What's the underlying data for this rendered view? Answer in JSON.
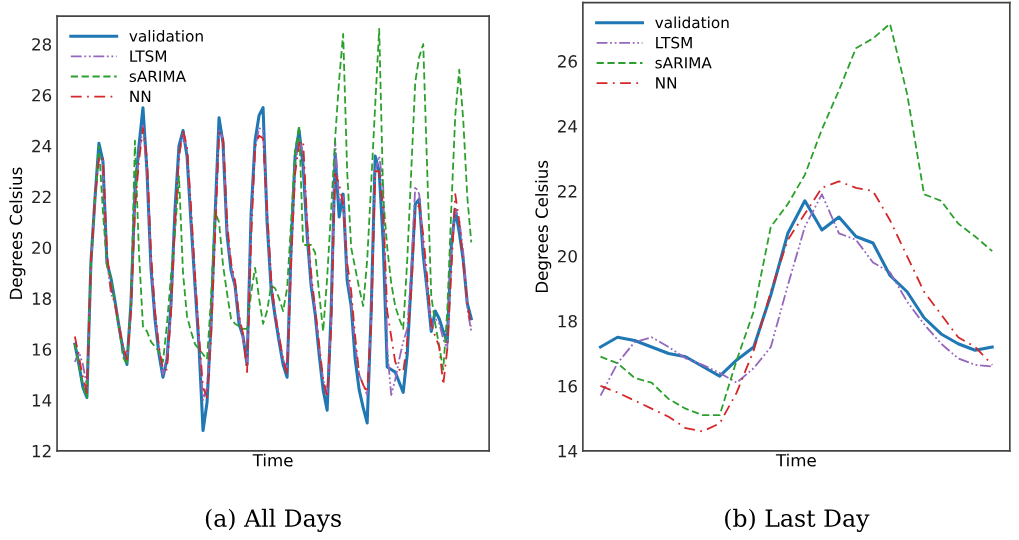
{
  "chart_data": [
    {
      "type": "line",
      "xlabel": "Time",
      "ylabel": "Degrees Celsius",
      "ylim": [
        12,
        29.1
      ],
      "yticks": [
        12,
        14,
        16,
        18,
        20,
        22,
        24,
        26,
        28
      ],
      "tick_labels": "y",
      "grid": false,
      "legend": "top left",
      "annotations": [
        "(a) All Days"
      ],
      "categories": [
        null,
        null,
        null,
        null,
        null,
        null,
        null,
        null,
        null,
        null,
        null,
        null,
        null,
        null,
        null,
        null,
        null,
        null,
        null,
        null,
        null,
        null,
        null,
        null,
        null,
        null,
        null,
        null,
        null,
        null,
        null,
        null,
        null,
        null,
        null,
        null,
        null,
        null,
        null,
        null,
        null,
        null,
        null,
        null,
        null,
        null,
        null,
        null,
        null,
        null,
        null,
        null,
        null,
        null,
        null,
        null,
        null,
        null,
        null,
        null,
        null,
        null,
        null,
        null,
        null,
        null,
        null,
        null,
        null,
        null,
        null,
        null,
        null,
        null,
        null,
        null,
        null,
        null,
        null,
        null,
        null,
        null,
        null,
        null,
        null,
        null,
        null,
        null,
        null,
        null,
        null,
        null,
        null,
        null,
        null,
        null,
        null,
        null,
        null,
        null
      ],
      "series": [
        {
          "name": "validation",
          "color": "#1f77b4",
          "line_style": "solid",
          "values": [
            16.2,
            15.4,
            14.5,
            14.1,
            19.4,
            21.9,
            24.1,
            23.4,
            19.4,
            18.8,
            17.9,
            16.9,
            16.0,
            15.4,
            17.8,
            22.2,
            24.0,
            25.5,
            23.0,
            19.2,
            17.2,
            15.8,
            14.9,
            15.6,
            17.8,
            21.5,
            24.0,
            24.6,
            23.6,
            21.0,
            18.5,
            16.1,
            12.8,
            13.9,
            17.0,
            21.2,
            25.1,
            24.1,
            20.5,
            19.1,
            18.5,
            17.0,
            16.5,
            15.4,
            21.3,
            24.2,
            25.2,
            25.5,
            21.0,
            18.4,
            17.3,
            16.3,
            15.4,
            14.9,
            20.0,
            23.6,
            24.6,
            23.2,
            20.5,
            18.5,
            17.4,
            15.8,
            14.4,
            13.6,
            17.5,
            23.7,
            21.2,
            22.1,
            18.7,
            17.7,
            15.6,
            14.4,
            13.7,
            13.1,
            17.5,
            23.6,
            23.0,
            20.2,
            15.3,
            15.2,
            15.1,
            14.7,
            14.3,
            15.8,
            18.7,
            21.7,
            21.9,
            19.7,
            18.3,
            16.7,
            17.5,
            17.2,
            16.7,
            16.3,
            20.0,
            21.5,
            20.6,
            19.5,
            17.8,
            17.2
          ]
        },
        {
          "name": "LTSM",
          "color": "#9467bd",
          "line_style": "dashdotdot",
          "values": [
            15.5,
            15.9,
            15.4,
            14.5,
            19.2,
            21.8,
            23.6,
            23.4,
            19.5,
            18.2,
            17.8,
            17.0,
            16.2,
            15.5,
            17.5,
            21.8,
            23.6,
            24.8,
            23.0,
            19.4,
            17.4,
            16.0,
            15.0,
            15.6,
            17.5,
            21.0,
            23.6,
            24.5,
            23.8,
            21.2,
            18.6,
            16.4,
            14.0,
            14.5,
            16.8,
            20.8,
            24.6,
            24.3,
            20.7,
            19.3,
            18.4,
            17.3,
            16.4,
            15.5,
            21.0,
            23.9,
            24.7,
            24.6,
            21.2,
            18.6,
            17.5,
            16.5,
            15.6,
            15.2,
            19.6,
            23.2,
            24.3,
            23.7,
            20.8,
            18.7,
            17.6,
            16.1,
            14.8,
            14.3,
            17.0,
            24.2,
            21.8,
            22.0,
            19.0,
            17.9,
            16.2,
            15.0,
            14.6,
            14.2,
            17.2,
            23.0,
            23.6,
            22.4,
            16.0,
            14.2,
            14.8,
            15.6,
            16.3,
            16.8,
            19.0,
            22.4,
            22.1,
            20.1,
            18.3,
            16.8,
            17.2,
            17.0,
            16.4,
            16.0,
            19.8,
            21.5,
            21.1,
            19.8,
            17.6,
            16.7
          ]
        },
        {
          "name": "sARIMA",
          "color": "#2ca02c",
          "line_style": "dashed",
          "values": [
            16.2,
            15.4,
            14.5,
            14.1,
            19.4,
            21.8,
            24.0,
            21.4,
            19.3,
            18.8,
            17.8,
            16.9,
            15.7,
            15.4,
            17.8,
            24.2,
            19.8,
            16.9,
            16.7,
            16.3,
            16.1,
            15.9,
            15.5,
            17.0,
            18.9,
            20.6,
            22.8,
            19.0,
            17.3,
            16.7,
            16.2,
            16.0,
            15.8,
            15.6,
            18.0,
            21.4,
            21.0,
            19.3,
            18.2,
            17.2,
            17.0,
            16.9,
            16.8,
            16.8,
            18.2,
            19.2,
            18.0,
            17.0,
            17.5,
            18.5,
            18.4,
            18.0,
            17.5,
            18.4,
            21.0,
            23.8,
            24.8,
            20.1,
            20.1,
            20.1,
            19.8,
            18.2,
            16.7,
            18.8,
            21.5,
            24.3,
            26.6,
            28.4,
            23.0,
            20.0,
            19.2,
            18.4,
            17.7,
            19.5,
            22.5,
            25.6,
            28.6,
            22.0,
            20.0,
            18.6,
            17.7,
            17.2,
            16.8,
            19.5,
            23.0,
            26.5,
            27.5,
            28.0,
            23.0,
            18.1,
            17.0,
            16.1,
            15.2,
            17.5,
            21.5,
            25.2,
            27.0,
            25.0,
            22.0,
            20.2
          ]
        },
        {
          "name": "NN",
          "color": "#d62728",
          "line_style": "dashdot",
          "values": [
            16.5,
            15.7,
            14.9,
            14.3,
            19.4,
            22.0,
            23.5,
            23.6,
            19.8,
            18.4,
            17.8,
            16.9,
            16.1,
            15.6,
            17.5,
            21.5,
            23.4,
            24.7,
            23.5,
            19.8,
            17.5,
            16.1,
            15.2,
            15.2,
            17.4,
            21.0,
            23.6,
            24.6,
            24.0,
            21.6,
            18.9,
            16.5,
            14.5,
            14.1,
            16.4,
            20.4,
            24.5,
            24.4,
            21.0,
            19.4,
            18.7,
            17.3,
            16.6,
            15.1,
            20.3,
            24.0,
            24.4,
            24.3,
            21.5,
            18.8,
            17.3,
            16.5,
            15.6,
            15.0,
            19.4,
            22.9,
            24.1,
            24.2,
            21.0,
            19.0,
            17.6,
            16.2,
            14.8,
            14.1,
            16.8,
            22.9,
            22.5,
            21.7,
            19.4,
            18.3,
            16.5,
            15.0,
            14.6,
            14.3,
            17.0,
            23.0,
            23.0,
            21.5,
            17.5,
            16.5,
            15.5,
            15.2,
            15.1,
            16.3,
            18.3,
            21.4,
            21.7,
            20.5,
            18.8,
            17.0,
            16.5,
            16.1,
            14.6,
            16.0,
            19.0,
            22.1,
            21.0,
            19.4,
            17.8,
            16.9
          ]
        }
      ]
    },
    {
      "type": "line",
      "xlabel": "Time",
      "ylabel": "Degrees Celsius",
      "ylim": [
        14,
        27.8
      ],
      "yticks": [
        14,
        16,
        18,
        20,
        22,
        24,
        26
      ],
      "tick_labels": "y",
      "grid": false,
      "legend": "top left",
      "annotations": [
        "(b) Last Day"
      ],
      "categories": [
        null,
        null,
        null,
        null,
        null,
        null,
        null,
        null,
        null,
        null,
        null,
        null,
        null,
        null,
        null,
        null,
        null,
        null,
        null,
        null,
        null,
        null,
        null,
        null
      ],
      "series": [
        {
          "name": "validation",
          "color": "#1f77b4",
          "line_style": "solid",
          "values": [
            17.2,
            17.5,
            17.4,
            17.2,
            17.0,
            16.9,
            16.6,
            16.3,
            16.8,
            17.2,
            18.8,
            20.7,
            21.7,
            20.8,
            21.2,
            20.6,
            20.4,
            19.4,
            18.9,
            18.1,
            17.6,
            17.3,
            17.1,
            17.2
          ]
        },
        {
          "name": "LTSM",
          "color": "#9467bd",
          "line_style": "dashdotdot",
          "values": [
            15.7,
            16.7,
            17.35,
            17.5,
            17.2,
            16.85,
            16.65,
            16.4,
            16.1,
            16.55,
            17.2,
            19.1,
            20.9,
            21.9,
            20.7,
            20.5,
            19.8,
            19.5,
            18.6,
            17.9,
            17.3,
            16.85,
            16.65,
            16.6
          ]
        },
        {
          "name": "sARIMA",
          "color": "#2ca02c",
          "line_style": "dashed",
          "values": [
            16.9,
            16.7,
            16.25,
            16.1,
            15.6,
            15.3,
            15.1,
            15.1,
            16.8,
            18.3,
            20.9,
            21.6,
            22.5,
            23.9,
            25.1,
            26.4,
            26.7,
            27.15,
            25.0,
            21.9,
            21.7,
            21.0,
            20.6,
            20.15
          ]
        },
        {
          "name": "NN",
          "color": "#d62728",
          "line_style": "dashdot",
          "values": [
            16.0,
            15.8,
            15.55,
            15.3,
            15.05,
            14.7,
            14.6,
            14.85,
            15.8,
            17.1,
            18.9,
            20.5,
            21.3,
            22.1,
            22.3,
            22.1,
            22.0,
            21.1,
            20.0,
            18.9,
            18.2,
            17.5,
            17.2,
            16.65
          ]
        }
      ]
    }
  ]
}
